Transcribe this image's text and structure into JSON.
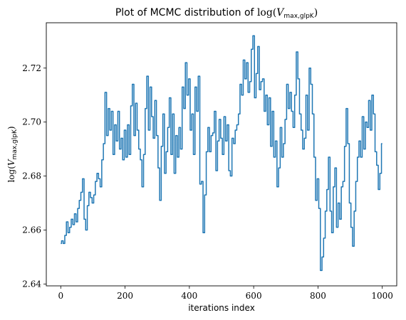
{
  "chart_data": {
    "type": "line",
    "title": {
      "prefix": "Plot of MCMC distribution of ",
      "math_func": "log(",
      "math_var": "V",
      "math_sub": "max,glpK",
      "math_close": ")"
    },
    "xlabel": "iterations index",
    "ylabel": {
      "math_func": "log(",
      "math_var": "V",
      "math_sub": "max,glpK",
      "math_close": ")"
    },
    "xlim": [
      -45,
      1045
    ],
    "ylim": [
      2.6393,
      2.7368
    ],
    "xticks": [
      0,
      200,
      400,
      600,
      800,
      1000
    ],
    "yticks": [
      2.64,
      2.66,
      2.68,
      2.7,
      2.72
    ],
    "ytick_labels": [
      "2.64",
      "2.66",
      "2.68",
      "2.70",
      "2.72"
    ],
    "series_color": "#1f77b4",
    "series": [
      {
        "x": [
          0,
          5,
          10,
          15,
          20,
          25,
          30,
          35,
          40,
          45,
          50,
          55,
          60,
          65,
          70,
          75,
          80,
          85,
          90,
          95,
          100,
          105,
          110,
          115,
          120,
          125,
          130,
          135,
          140,
          145,
          150,
          155,
          160,
          165,
          170,
          175,
          180,
          185,
          190,
          195,
          200,
          205,
          210,
          215,
          220,
          225,
          230,
          235,
          240,
          245,
          250,
          255,
          260,
          265,
          270,
          275,
          280,
          285,
          290,
          295,
          300,
          305,
          310,
          315,
          320,
          325,
          330,
          335,
          340,
          345,
          350,
          355,
          360,
          365,
          370,
          375,
          380,
          385,
          390,
          395,
          400,
          405,
          410,
          415,
          420,
          425,
          430,
          435,
          440,
          445,
          450,
          455,
          460,
          465,
          470,
          475,
          480,
          485,
          490,
          495,
          500,
          505,
          510,
          515,
          520,
          525,
          530,
          535,
          540,
          545,
          550,
          555,
          560,
          565,
          570,
          575,
          580,
          585,
          590,
          595,
          600,
          605,
          610,
          615,
          620,
          625,
          630,
          635,
          640,
          645,
          650,
          655,
          660,
          665,
          670,
          675,
          680,
          685,
          690,
          695,
          700,
          705,
          710,
          715,
          720,
          725,
          730,
          735,
          740,
          745,
          750,
          755,
          760,
          765,
          770,
          775,
          780,
          785,
          790,
          795,
          800,
          805,
          810,
          815,
          820,
          825,
          830,
          835,
          840,
          845,
          850,
          855,
          860,
          865,
          870,
          875,
          880,
          885,
          890,
          895,
          900,
          905,
          910,
          915,
          920,
          925,
          930,
          935,
          940,
          945,
          950,
          955,
          960,
          965,
          970,
          975,
          980,
          985,
          990,
          995,
          1000
        ],
        "y": [
          2.655,
          2.656,
          2.655,
          2.658,
          2.663,
          2.659,
          2.661,
          2.664,
          2.662,
          2.666,
          2.663,
          2.668,
          2.671,
          2.674,
          2.679,
          2.664,
          2.66,
          2.669,
          2.674,
          2.672,
          2.67,
          2.673,
          2.678,
          2.681,
          2.679,
          2.676,
          2.686,
          2.692,
          2.711,
          2.695,
          2.705,
          2.697,
          2.704,
          2.688,
          2.699,
          2.693,
          2.704,
          2.69,
          2.694,
          2.686,
          2.697,
          2.687,
          2.699,
          2.688,
          2.706,
          2.714,
          2.695,
          2.707,
          2.697,
          2.69,
          2.686,
          2.676,
          2.688,
          2.705,
          2.717,
          2.697,
          2.713,
          2.702,
          2.694,
          2.708,
          2.695,
          2.683,
          2.671,
          2.691,
          2.703,
          2.681,
          2.689,
          2.698,
          2.709,
          2.688,
          2.703,
          2.681,
          2.695,
          2.687,
          2.698,
          2.69,
          2.713,
          2.705,
          2.722,
          2.71,
          2.716,
          2.697,
          2.703,
          2.688,
          2.713,
          2.704,
          2.717,
          2.677,
          2.678,
          2.659,
          2.673,
          2.689,
          2.698,
          2.689,
          2.695,
          2.696,
          2.704,
          2.682,
          2.693,
          2.701,
          2.694,
          2.688,
          2.702,
          2.693,
          2.699,
          2.682,
          2.68,
          2.694,
          2.692,
          2.697,
          2.699,
          2.703,
          2.714,
          2.71,
          2.723,
          2.716,
          2.722,
          2.711,
          2.715,
          2.727,
          2.732,
          2.709,
          2.718,
          2.728,
          2.712,
          2.715,
          2.716,
          2.704,
          2.71,
          2.699,
          2.709,
          2.691,
          2.704,
          2.687,
          2.693,
          2.676,
          2.683,
          2.698,
          2.687,
          2.692,
          2.701,
          2.714,
          2.705,
          2.711,
          2.704,
          2.698,
          2.71,
          2.726,
          2.716,
          2.703,
          2.697,
          2.69,
          2.694,
          2.71,
          2.697,
          2.72,
          2.714,
          2.703,
          2.687,
          2.671,
          2.679,
          2.668,
          2.645,
          2.65,
          2.657,
          2.667,
          2.675,
          2.687,
          2.667,
          2.659,
          2.676,
          2.683,
          2.661,
          2.67,
          2.664,
          2.676,
          2.678,
          2.691,
          2.705,
          2.692,
          2.67,
          2.661,
          2.654,
          2.667,
          2.678,
          2.687,
          2.693,
          2.687,
          2.702,
          2.69,
          2.7,
          2.698,
          2.708,
          2.697,
          2.71,
          2.703,
          2.689,
          2.684,
          2.675,
          2.681,
          2.692
        ]
      }
    ]
  }
}
